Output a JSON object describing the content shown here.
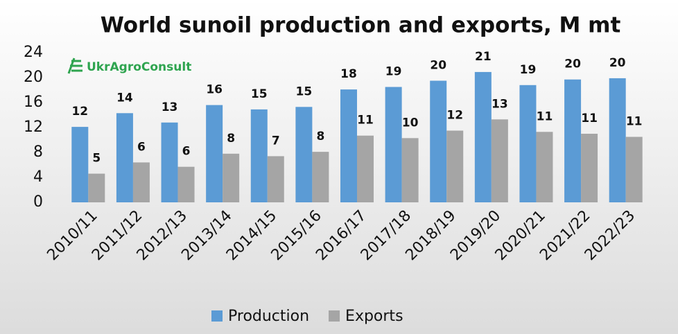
{
  "chart_data": {
    "type": "bar",
    "title": "World sunoil production and exports, M mt",
    "logo": "UkrAgroConsult",
    "categories": [
      "2010/11",
      "2011/12",
      "2012/13",
      "2013/14",
      "2014/15",
      "2015/16",
      "2016/17",
      "2017/18",
      "2018/19",
      "2019/20",
      "2020/21",
      "2021/22",
      "2022/23"
    ],
    "series": [
      {
        "name": "Production",
        "color": "#5b9bd5",
        "values": [
          12.1,
          14.3,
          12.8,
          15.6,
          14.9,
          15.3,
          18.1,
          18.5,
          19.5,
          20.9,
          18.8,
          19.7,
          19.9
        ],
        "value_labels": [
          "12",
          "14",
          "13",
          "16",
          "15",
          "15",
          "18",
          "19",
          "20",
          "21",
          "19",
          "20",
          "20"
        ]
      },
      {
        "name": "Exports",
        "color": "#a5a5a5",
        "values": [
          4.6,
          6.4,
          5.7,
          7.8,
          7.4,
          8.1,
          10.7,
          10.3,
          11.5,
          13.3,
          11.3,
          11.0,
          10.5
        ],
        "value_labels": [
          "5",
          "6",
          "6",
          "8",
          "7",
          "8",
          "11",
          "10",
          "12",
          "13",
          "11",
          "11",
          "11"
        ]
      }
    ],
    "ylim": [
      0,
      24
    ],
    "yticks": [
      0,
      4,
      8,
      12,
      16,
      20,
      24
    ],
    "grid": false,
    "legend": "bottom"
  }
}
